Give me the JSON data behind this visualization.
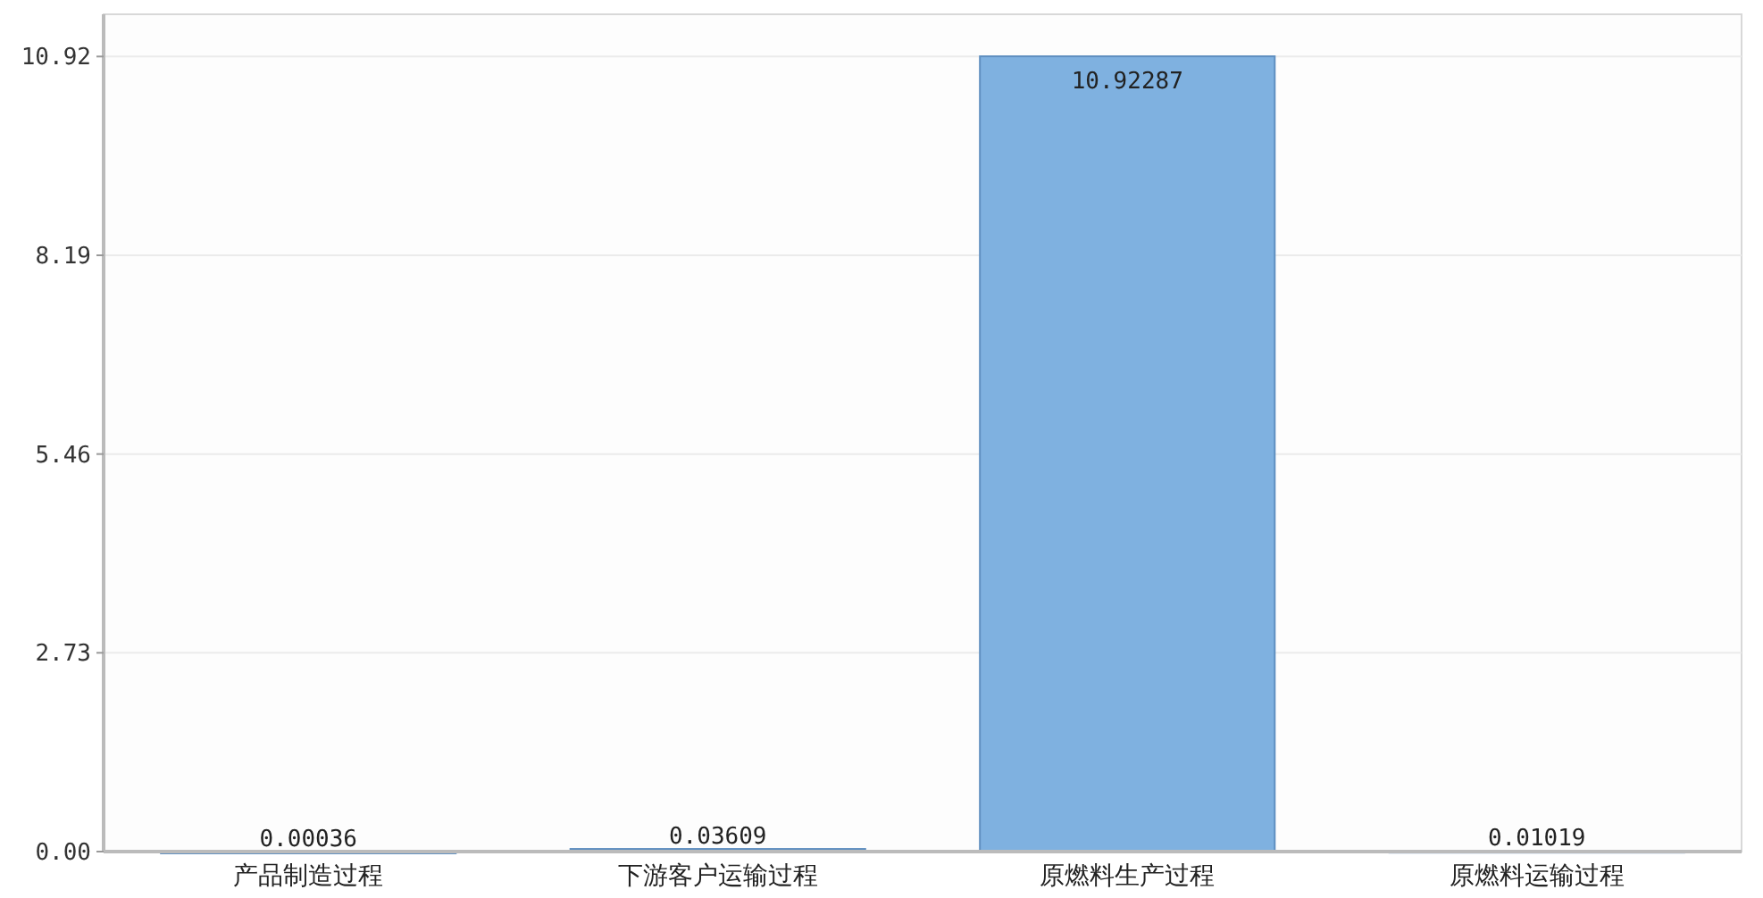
{
  "chart_data": {
    "type": "bar",
    "categories": [
      "产品制造过程",
      "下游客户运输过程",
      "原燃料生产过程",
      "原燃料运输过程"
    ],
    "values": [
      0.00036,
      0.03609,
      10.92287,
      0.01019
    ],
    "color": "#7fb1e0",
    "ylim": [
      0,
      11.5
    ],
    "yticks": [
      {
        "value": 0,
        "label": "0.00"
      },
      2.73,
      5.46,
      8.19,
      10.92
    ],
    "grid": "y",
    "data_labels": true
  }
}
